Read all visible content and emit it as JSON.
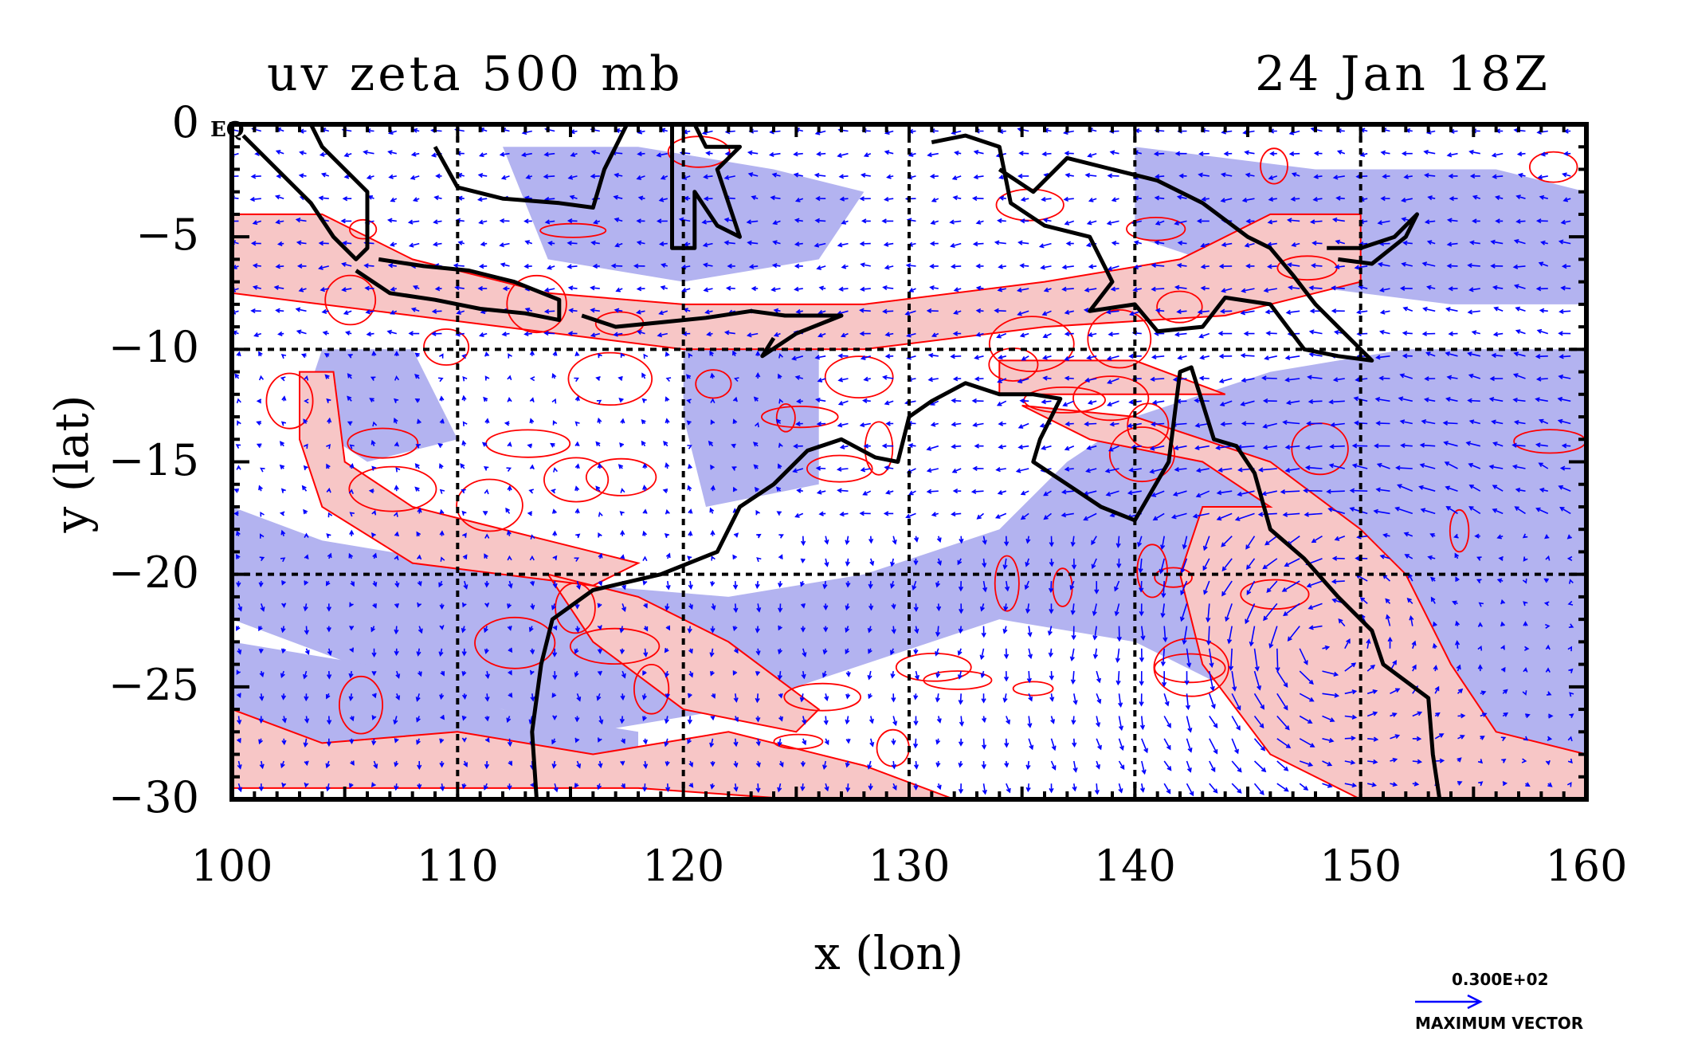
{
  "title_left": "uv zeta 500 mb",
  "title_right": "24 Jan 18Z",
  "corner_label": "EQ",
  "xlabel": "x (lon)",
  "ylabel": "y (lat)",
  "x_ticks": [
    "100",
    "110",
    "120",
    "130",
    "140",
    "150",
    "160"
  ],
  "y_ticks": [
    "0",
    "−5",
    "−10",
    "−15",
    "−20",
    "−25",
    "−30"
  ],
  "vector_key": {
    "value": "0.300E+02",
    "label": "MAXIMUM VECTOR"
  },
  "colors": {
    "positive_fill": "#f7c6c6",
    "negative_fill": "#b3b3f0",
    "contour": "#ff0000",
    "vector": "#0000ff",
    "coast": "#000000"
  },
  "chart_data": {
    "type": "vector-field-map",
    "field": "uv zeta",
    "level": "500 mb",
    "time": "24 Jan 18Z",
    "xlim": [
      100,
      160
    ],
    "ylim": [
      -30,
      0
    ],
    "grid": true,
    "grid_lon": [
      110,
      120,
      130,
      140,
      150
    ],
    "grid_lat": [
      -10,
      -20
    ]
  }
}
